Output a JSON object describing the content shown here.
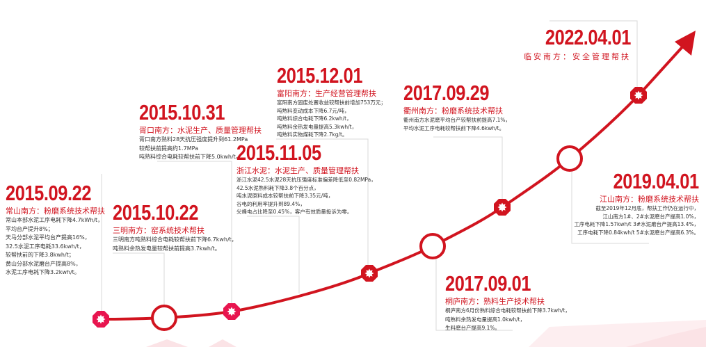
{
  "colors": {
    "accent": "#d1141f",
    "node_fill": "#e8154f",
    "connector": "#d8d8d8",
    "watermark": "#fbe3e6"
  },
  "events": [
    {
      "date": "2015.09.22",
      "title": "常山南方：粉磨系统技术帮扶",
      "lines": [
        "常山本部水泥工序电耗下降4.7kWh/t，",
        "平均台产提升8%；",
        "天马分部水泥平均台产提高16%，",
        "32.5水泥工序电耗33.6kwh/t，",
        "较帮扶前的下降3.8kwh/t；",
        "黄山分部水泥磨台产提高8%，",
        "水泥工序电耗下降3.2kwh/t。"
      ],
      "marker": "octagon-icon"
    },
    {
      "date": "2015.10.22",
      "title": "三明南方：窑系统技术帮扶",
      "lines": [
        "三明南方吨熟料综合电耗较帮扶前下降6.7kwh/t，",
        "吨熟料余热发电量较帮扶前提高3.7kwh/t。"
      ],
      "marker": "ring-icon"
    },
    {
      "date": "2015.10.31",
      "title": "胥口南方：水泥生产、质量管理帮扶",
      "lines": [
        "胥口南方熟料28天抗压强度提升到61.2MPa",
        "较帮扶前提高约1.7MPa",
        "吨熟料综合电耗较帮扶前下降5.0kwh/t。"
      ],
      "marker": "octagon-icon"
    },
    {
      "date": "2015.11.05",
      "title": "浙江水泥：水泥生产、质量管理帮扶",
      "lines": [
        "浙江水泥42.5水泥28天抗压强度标准偏差降低至0.82MPa，",
        "42.5水泥熟料耗下降3.8个百分点，",
        "吨水泥原料成本较帮扶前下降3.35元/吨，",
        "谷电的利用率提升到89.4%，",
        "尖峰电占比降至0.45%，客户有效质量投诉为零。"
      ],
      "marker": "none"
    },
    {
      "date": "2015.12.01",
      "title": "富阳南方：生产经营管理帮扶",
      "lines": [
        "富阳南方固废处置收益较帮扶前增加753万元；",
        "吨熟料变动成本下降6.7元/吨，",
        "吨熟料综合电耗下降6.2kwh/t，",
        "吨熟料余热发电量提高5.3kwh/t，",
        "吨熟料实物煤耗下降2.7kg/t。"
      ],
      "marker": "octagon-icon"
    },
    {
      "date": "2017.09.01",
      "title": "桐庐南方：熟料生产技术帮扶",
      "lines": [
        "桐庐南方6月份熟料综合电耗较帮扶前下降3.7kwh/t，",
        "吨熟料余热发电量提高1.0kwh/t，",
        "生料磨台产提高9.1%。"
      ],
      "marker": "ring-icon"
    },
    {
      "date": "2017.09.29",
      "title": "衢州南方：粉磨系统技术帮扶",
      "lines": [
        "衢州南方水泥磨平均台产较帮扶前提高7.1%，",
        "平均水泥工序电耗较帮扶前下降4.6kwh/t。"
      ],
      "marker": "octagon-icon"
    },
    {
      "date": "2019.04.01",
      "title": "江山南方：粉磨系统技术帮扶",
      "lines": [
        "截至2019年12月底，帮扶工作仍在运行中，",
        "江山南方1#、2#水泥磨台产提高1.0%，",
        "工序电耗下降1.57kwh/t 3#水泥磨台产提高13.4%，",
        "工序电耗下降0.84kwh/t 5#水泥磨台产提高6.3%。"
      ],
      "marker": "ring-icon"
    },
    {
      "date": "2022.04.01",
      "title": "临安南方：安全管理帮扶",
      "lines": [],
      "marker": "octagon-icon"
    }
  ],
  "arrow": "arrow-up-right-icon"
}
